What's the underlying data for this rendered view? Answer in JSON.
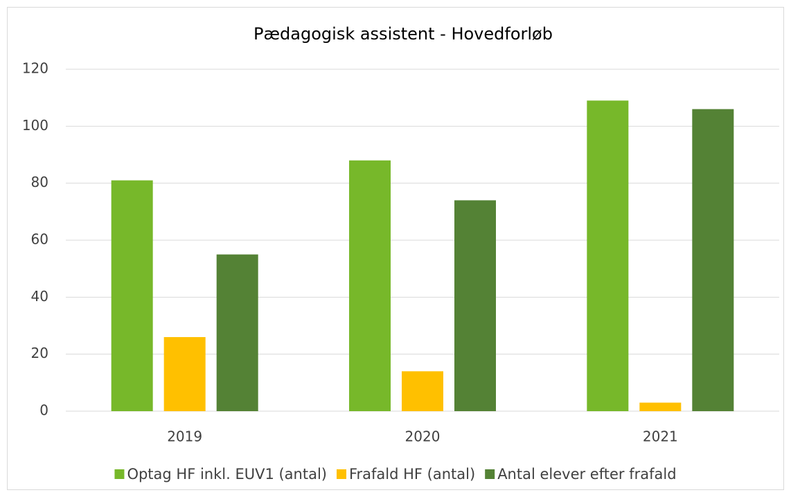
{
  "chart_data": {
    "type": "bar",
    "title": "Pædagogisk assistent - Hovedforløb",
    "categories": [
      "2019",
      "2020",
      "2021"
    ],
    "series": [
      {
        "name": "Optag HF inkl. EUV1 (antal)",
        "color": "#77b82a",
        "values": [
          81,
          88,
          109
        ]
      },
      {
        "name": "Frafald HF (antal)",
        "color": "#ffc000",
        "values": [
          26,
          14,
          3
        ]
      },
      {
        "name": "Antal elever efter frafald",
        "color": "#548235",
        "values": [
          55,
          74,
          106
        ]
      }
    ],
    "ylim": [
      0,
      120
    ],
    "yticks": [
      0,
      20,
      40,
      60,
      80,
      100,
      120
    ],
    "grid": true,
    "legend": "bottom"
  }
}
